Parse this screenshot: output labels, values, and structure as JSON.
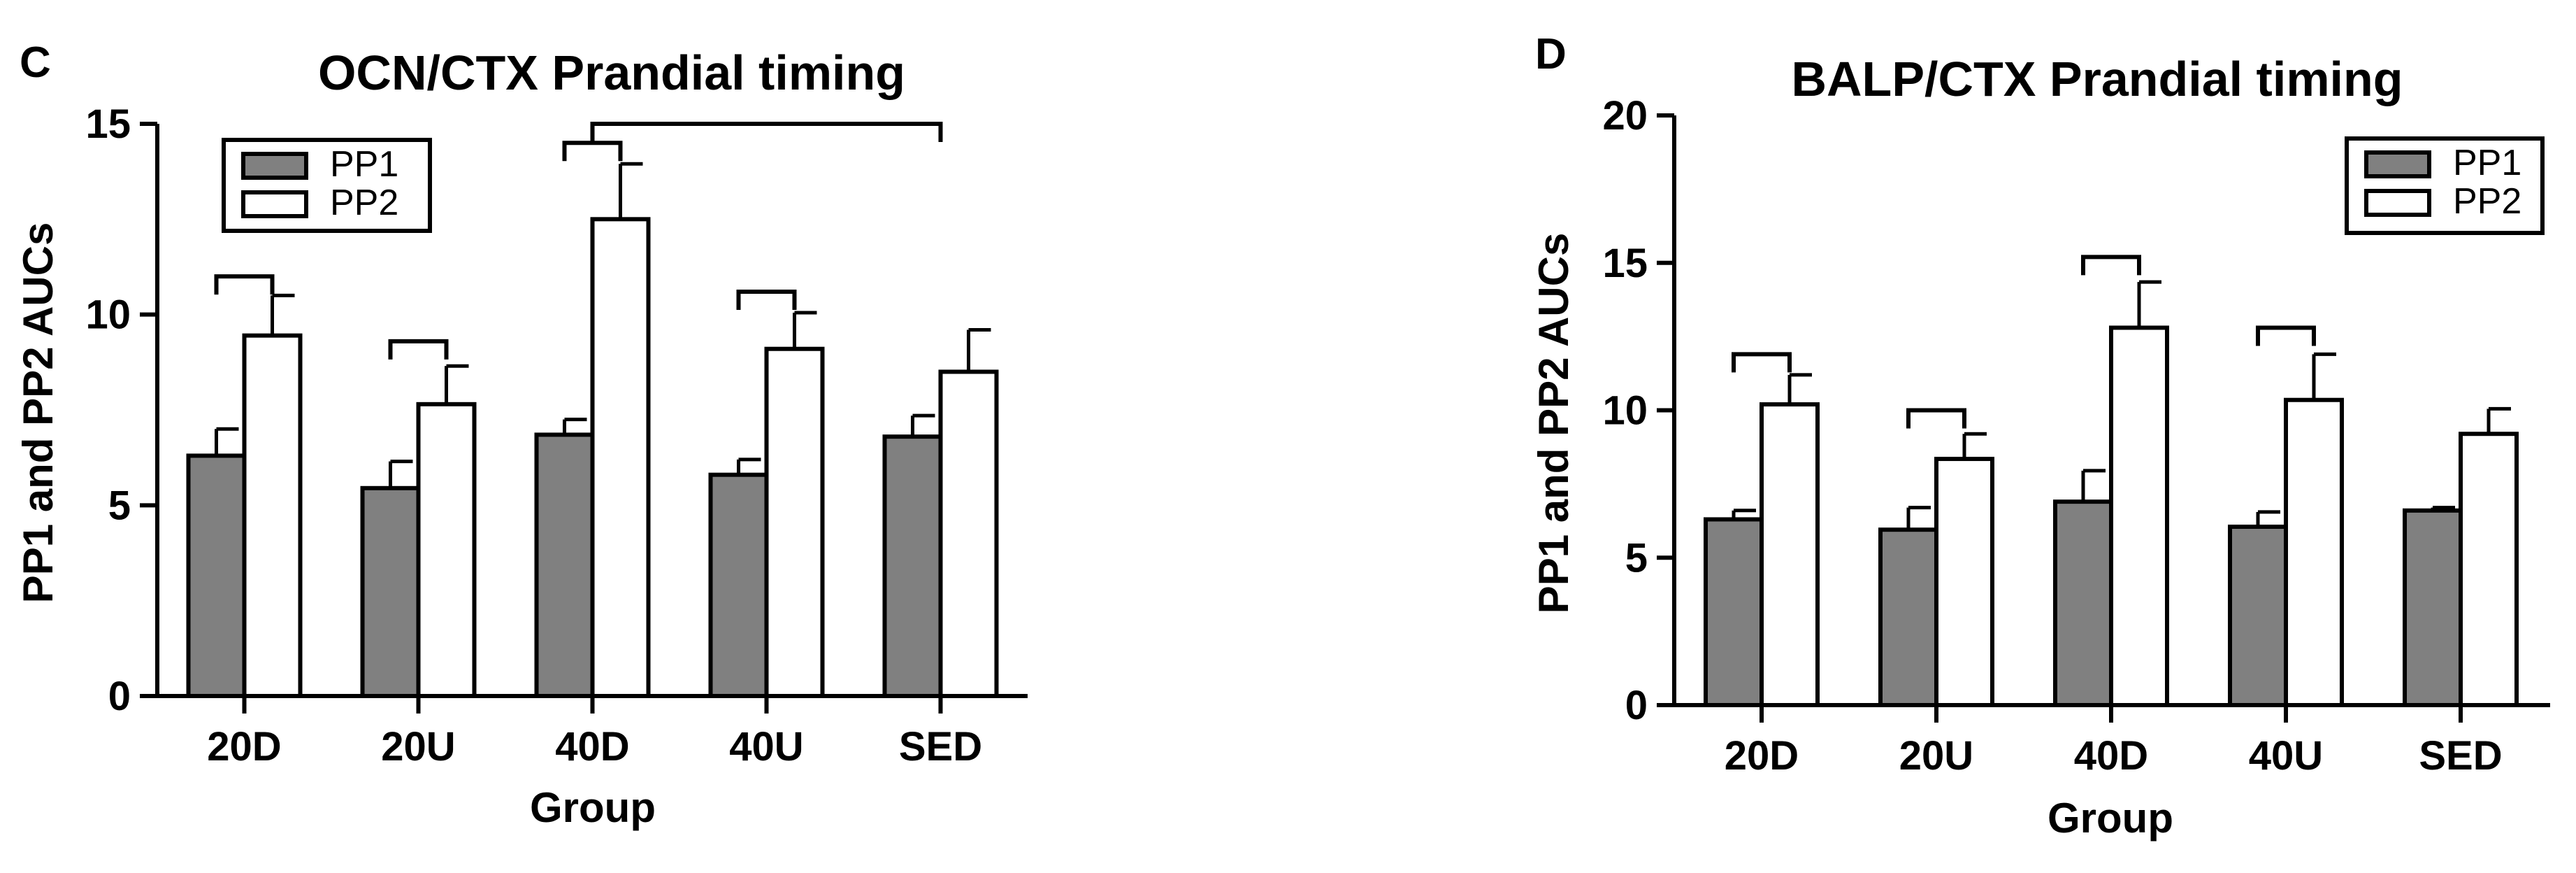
{
  "colors": {
    "pp1_fill": "#808080",
    "pp2_fill": "#ffffff",
    "stroke": "#000000"
  },
  "chart_data": [
    {
      "type": "bar",
      "panel_label": "C",
      "title": "OCN/CTX Prandial timing",
      "xlabel": "Group",
      "ylabel": "PP1 and PP2 AUCs",
      "categories": [
        "20D",
        "20U",
        "40D",
        "40U",
        "SED"
      ],
      "ylim": [
        0,
        15
      ],
      "yticks": [
        0,
        5,
        10,
        15
      ],
      "legend": {
        "position": "top-left",
        "entries": [
          "PP1",
          "PP2"
        ]
      },
      "series": [
        {
          "name": "PP1",
          "values": [
            6.3,
            5.45,
            6.85,
            5.8,
            6.8
          ],
          "errors": [
            0.7,
            0.7,
            0.4,
            0.4,
            0.55
          ]
        },
        {
          "name": "PP2",
          "values": [
            9.45,
            7.65,
            12.5,
            9.1,
            8.5
          ],
          "errors": [
            1.05,
            1.0,
            1.45,
            0.95,
            1.1
          ]
        }
      ],
      "brackets": [
        {
          "from": [
            0,
            0
          ],
          "to": [
            0,
            1
          ],
          "level": 11.0
        },
        {
          "from": [
            1,
            0
          ],
          "to": [
            1,
            1
          ],
          "level": 9.3
        },
        {
          "from": [
            2,
            0
          ],
          "to": [
            2,
            1
          ],
          "level": 14.5
        },
        {
          "from": [
            3,
            0
          ],
          "to": [
            3,
            1
          ],
          "level": 10.6
        },
        {
          "from": [
            2,
            0.5
          ],
          "to": [
            4,
            0.5
          ],
          "level": 15.0
        }
      ]
    },
    {
      "type": "bar",
      "panel_label": "D",
      "title": "BALP/CTX Prandial timing",
      "xlabel": "Group",
      "ylabel": "PP1 and PP2 AUCs",
      "categories": [
        "20D",
        "20U",
        "40D",
        "40U",
        "SED"
      ],
      "ylim": [
        0,
        20
      ],
      "yticks": [
        0,
        5,
        10,
        15,
        20
      ],
      "legend": {
        "position": "top-right",
        "entries": [
          "PP1",
          "PP2"
        ]
      },
      "series": [
        {
          "name": "PP1",
          "values": [
            6.3,
            5.95,
            6.9,
            6.05,
            6.6
          ],
          "errors": [
            0.3,
            0.75,
            1.05,
            0.5,
            0.1
          ]
        },
        {
          "name": "PP2",
          "values": [
            10.2,
            8.35,
            12.8,
            10.35,
            9.2
          ],
          "errors": [
            1.0,
            0.85,
            1.55,
            1.55,
            0.85
          ]
        }
      ],
      "brackets": [
        {
          "from": [
            0,
            0
          ],
          "to": [
            0,
            1
          ],
          "level": 11.9
        },
        {
          "from": [
            1,
            0
          ],
          "to": [
            1,
            1
          ],
          "level": 10.0
        },
        {
          "from": [
            2,
            0
          ],
          "to": [
            2,
            1
          ],
          "level": 15.2
        },
        {
          "from": [
            3,
            0
          ],
          "to": [
            3,
            1
          ],
          "level": 12.8
        }
      ]
    }
  ]
}
